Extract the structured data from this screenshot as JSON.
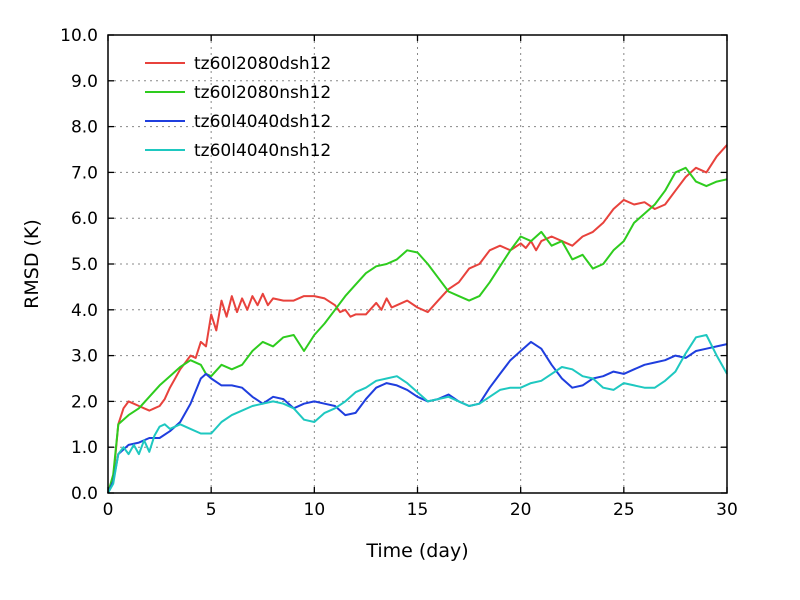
{
  "chart_data": {
    "type": "line",
    "xlabel": "Time (day)",
    "ylabel": "RMSD (K)",
    "xlim": [
      0,
      30
    ],
    "ylim": [
      0,
      10
    ],
    "xticks": [
      0,
      5,
      10,
      15,
      20,
      25,
      30
    ],
    "xtick_labels": [
      "0",
      "5",
      "10",
      "15",
      "20",
      "25",
      "30"
    ],
    "yticks": [
      0,
      1,
      2,
      3,
      4,
      5,
      6,
      7,
      8,
      9,
      10
    ],
    "ytick_labels": [
      "0.0",
      "1.0",
      "2.0",
      "3.0",
      "4.0",
      "5.0",
      "6.0",
      "7.0",
      "8.0",
      "9.0",
      "10.0"
    ],
    "grid": true,
    "legend_position": "top-left",
    "series": [
      {
        "name": "tz60l2080dsh12",
        "color": "#e8423c",
        "points": [
          [
            0,
            0
          ],
          [
            0.25,
            0.3
          ],
          [
            0.5,
            1.5
          ],
          [
            0.75,
            1.85
          ],
          [
            1,
            2.0
          ],
          [
            1.25,
            1.95
          ],
          [
            1.5,
            1.9
          ],
          [
            1.75,
            1.85
          ],
          [
            2,
            1.8
          ],
          [
            2.25,
            1.85
          ],
          [
            2.5,
            1.9
          ],
          [
            2.75,
            2.05
          ],
          [
            3,
            2.3
          ],
          [
            3.25,
            2.5
          ],
          [
            3.5,
            2.7
          ],
          [
            3.75,
            2.85
          ],
          [
            4,
            3.0
          ],
          [
            4.25,
            2.95
          ],
          [
            4.5,
            3.3
          ],
          [
            4.75,
            3.2
          ],
          [
            5,
            3.9
          ],
          [
            5.25,
            3.55
          ],
          [
            5.5,
            4.2
          ],
          [
            5.75,
            3.85
          ],
          [
            6,
            4.3
          ],
          [
            6.25,
            3.95
          ],
          [
            6.5,
            4.25
          ],
          [
            6.75,
            4.0
          ],
          [
            7,
            4.3
          ],
          [
            7.25,
            4.1
          ],
          [
            7.5,
            4.35
          ],
          [
            7.75,
            4.1
          ],
          [
            8,
            4.25
          ],
          [
            8.5,
            4.2
          ],
          [
            9,
            4.2
          ],
          [
            9.5,
            4.3
          ],
          [
            10,
            4.3
          ],
          [
            10.5,
            4.25
          ],
          [
            11,
            4.1
          ],
          [
            11.25,
            3.95
          ],
          [
            11.5,
            4.0
          ],
          [
            11.75,
            3.85
          ],
          [
            12,
            3.9
          ],
          [
            12.5,
            3.9
          ],
          [
            13,
            4.15
          ],
          [
            13.25,
            4.0
          ],
          [
            13.5,
            4.25
          ],
          [
            13.75,
            4.05
          ],
          [
            14,
            4.1
          ],
          [
            14.5,
            4.2
          ],
          [
            15,
            4.05
          ],
          [
            15.5,
            3.95
          ],
          [
            16,
            4.2
          ],
          [
            16.5,
            4.45
          ],
          [
            17,
            4.6
          ],
          [
            17.5,
            4.9
          ],
          [
            18,
            5.0
          ],
          [
            18.5,
            5.3
          ],
          [
            19,
            5.4
          ],
          [
            19.5,
            5.3
          ],
          [
            20,
            5.45
          ],
          [
            20.25,
            5.35
          ],
          [
            20.5,
            5.5
          ],
          [
            20.75,
            5.3
          ],
          [
            21,
            5.5
          ],
          [
            21.5,
            5.6
          ],
          [
            22,
            5.5
          ],
          [
            22.5,
            5.4
          ],
          [
            23,
            5.6
          ],
          [
            23.5,
            5.7
          ],
          [
            24,
            5.9
          ],
          [
            24.5,
            6.2
          ],
          [
            25,
            6.4
          ],
          [
            25.5,
            6.3
          ],
          [
            26,
            6.35
          ],
          [
            26.5,
            6.2
          ],
          [
            27,
            6.3
          ],
          [
            27.5,
            6.6
          ],
          [
            28,
            6.9
          ],
          [
            28.5,
            7.1
          ],
          [
            29,
            7.0
          ],
          [
            29.5,
            7.35
          ],
          [
            30,
            7.6
          ]
        ]
      },
      {
        "name": "tz60l2080nsh12",
        "color": "#2ecc1e",
        "points": [
          [
            0,
            0
          ],
          [
            0.25,
            0.4
          ],
          [
            0.5,
            1.5
          ],
          [
            1,
            1.7
          ],
          [
            1.5,
            1.85
          ],
          [
            2,
            2.1
          ],
          [
            2.5,
            2.35
          ],
          [
            3,
            2.55
          ],
          [
            3.5,
            2.75
          ],
          [
            4,
            2.9
          ],
          [
            4.5,
            2.8
          ],
          [
            4.75,
            2.6
          ],
          [
            5,
            2.55
          ],
          [
            5.5,
            2.8
          ],
          [
            6,
            2.7
          ],
          [
            6.5,
            2.8
          ],
          [
            7,
            3.1
          ],
          [
            7.5,
            3.3
          ],
          [
            8,
            3.2
          ],
          [
            8.5,
            3.4
          ],
          [
            9,
            3.45
          ],
          [
            9.5,
            3.1
          ],
          [
            10,
            3.45
          ],
          [
            10.5,
            3.7
          ],
          [
            11,
            4.0
          ],
          [
            11.5,
            4.3
          ],
          [
            12,
            4.55
          ],
          [
            12.5,
            4.8
          ],
          [
            13,
            4.95
          ],
          [
            13.5,
            5.0
          ],
          [
            14,
            5.1
          ],
          [
            14.5,
            5.3
          ],
          [
            15,
            5.25
          ],
          [
            15.5,
            5.0
          ],
          [
            16,
            4.7
          ],
          [
            16.5,
            4.4
          ],
          [
            17,
            4.3
          ],
          [
            17.5,
            4.2
          ],
          [
            18,
            4.3
          ],
          [
            18.5,
            4.6
          ],
          [
            19,
            4.95
          ],
          [
            19.5,
            5.3
          ],
          [
            20,
            5.6
          ],
          [
            20.5,
            5.5
          ],
          [
            21,
            5.7
          ],
          [
            21.5,
            5.4
          ],
          [
            22,
            5.5
          ],
          [
            22.5,
            5.1
          ],
          [
            23,
            5.2
          ],
          [
            23.5,
            4.9
          ],
          [
            24,
            5.0
          ],
          [
            24.5,
            5.3
          ],
          [
            25,
            5.5
          ],
          [
            25.5,
            5.9
          ],
          [
            26,
            6.1
          ],
          [
            26.5,
            6.3
          ],
          [
            27,
            6.6
          ],
          [
            27.5,
            7.0
          ],
          [
            28,
            7.1
          ],
          [
            28.5,
            6.8
          ],
          [
            29,
            6.7
          ],
          [
            29.5,
            6.8
          ],
          [
            30,
            6.85
          ]
        ]
      },
      {
        "name": "tz60l4040dsh12",
        "color": "#1f3ede",
        "points": [
          [
            0,
            0
          ],
          [
            0.25,
            0.25
          ],
          [
            0.5,
            0.85
          ],
          [
            1,
            1.05
          ],
          [
            1.5,
            1.1
          ],
          [
            2,
            1.2
          ],
          [
            2.5,
            1.2
          ],
          [
            3,
            1.35
          ],
          [
            3.5,
            1.55
          ],
          [
            4,
            1.95
          ],
          [
            4.5,
            2.5
          ],
          [
            4.75,
            2.6
          ],
          [
            5,
            2.5
          ],
          [
            5.5,
            2.35
          ],
          [
            6,
            2.35
          ],
          [
            6.5,
            2.3
          ],
          [
            7,
            2.1
          ],
          [
            7.5,
            1.95
          ],
          [
            8,
            2.1
          ],
          [
            8.5,
            2.05
          ],
          [
            9,
            1.85
          ],
          [
            9.5,
            1.95
          ],
          [
            10,
            2.0
          ],
          [
            10.5,
            1.95
          ],
          [
            11,
            1.9
          ],
          [
            11.5,
            1.7
          ],
          [
            12,
            1.75
          ],
          [
            12.5,
            2.05
          ],
          [
            13,
            2.3
          ],
          [
            13.5,
            2.4
          ],
          [
            14,
            2.35
          ],
          [
            14.5,
            2.25
          ],
          [
            15,
            2.1
          ],
          [
            15.5,
            2.0
          ],
          [
            16,
            2.05
          ],
          [
            16.5,
            2.15
          ],
          [
            17,
            2.0
          ],
          [
            17.5,
            1.9
          ],
          [
            18,
            1.95
          ],
          [
            18.5,
            2.3
          ],
          [
            19,
            2.6
          ],
          [
            19.5,
            2.9
          ],
          [
            20,
            3.1
          ],
          [
            20.5,
            3.3
          ],
          [
            21,
            3.15
          ],
          [
            21.5,
            2.8
          ],
          [
            22,
            2.5
          ],
          [
            22.5,
            2.3
          ],
          [
            23,
            2.35
          ],
          [
            23.5,
            2.5
          ],
          [
            24,
            2.55
          ],
          [
            24.5,
            2.65
          ],
          [
            25,
            2.6
          ],
          [
            25.5,
            2.7
          ],
          [
            26,
            2.8
          ],
          [
            26.5,
            2.85
          ],
          [
            27,
            2.9
          ],
          [
            27.5,
            3.0
          ],
          [
            28,
            2.95
          ],
          [
            28.5,
            3.1
          ],
          [
            29,
            3.15
          ],
          [
            29.5,
            3.2
          ],
          [
            30,
            3.25
          ]
        ]
      },
      {
        "name": "tz60l4040nsh12",
        "color": "#1ec8c0",
        "points": [
          [
            0,
            0
          ],
          [
            0.25,
            0.2
          ],
          [
            0.5,
            0.85
          ],
          [
            0.75,
            1.0
          ],
          [
            1,
            0.85
          ],
          [
            1.25,
            1.05
          ],
          [
            1.5,
            0.85
          ],
          [
            1.75,
            1.15
          ],
          [
            2,
            0.9
          ],
          [
            2.25,
            1.25
          ],
          [
            2.5,
            1.45
          ],
          [
            2.75,
            1.5
          ],
          [
            3,
            1.4
          ],
          [
            3.5,
            1.5
          ],
          [
            4,
            1.4
          ],
          [
            4.5,
            1.3
          ],
          [
            5,
            1.3
          ],
          [
            5.5,
            1.55
          ],
          [
            6,
            1.7
          ],
          [
            6.5,
            1.8
          ],
          [
            7,
            1.9
          ],
          [
            7.5,
            1.95
          ],
          [
            8,
            2.0
          ],
          [
            8.5,
            1.95
          ],
          [
            9,
            1.85
          ],
          [
            9.5,
            1.6
          ],
          [
            10,
            1.55
          ],
          [
            10.5,
            1.75
          ],
          [
            11,
            1.85
          ],
          [
            11.5,
            2.0
          ],
          [
            12,
            2.2
          ],
          [
            12.5,
            2.3
          ],
          [
            13,
            2.45
          ],
          [
            13.5,
            2.5
          ],
          [
            14,
            2.55
          ],
          [
            14.5,
            2.4
          ],
          [
            15,
            2.2
          ],
          [
            15.5,
            2.0
          ],
          [
            16,
            2.05
          ],
          [
            16.5,
            2.1
          ],
          [
            17,
            2.0
          ],
          [
            17.5,
            1.9
          ],
          [
            18,
            1.95
          ],
          [
            18.5,
            2.1
          ],
          [
            19,
            2.25
          ],
          [
            19.5,
            2.3
          ],
          [
            20,
            2.3
          ],
          [
            20.5,
            2.4
          ],
          [
            21,
            2.45
          ],
          [
            21.5,
            2.6
          ],
          [
            22,
            2.75
          ],
          [
            22.5,
            2.7
          ],
          [
            23,
            2.55
          ],
          [
            23.5,
            2.5
          ],
          [
            24,
            2.3
          ],
          [
            24.5,
            2.25
          ],
          [
            25,
            2.4
          ],
          [
            25.5,
            2.35
          ],
          [
            26,
            2.3
          ],
          [
            26.5,
            2.3
          ],
          [
            27,
            2.45
          ],
          [
            27.5,
            2.65
          ],
          [
            28,
            3.05
          ],
          [
            28.5,
            3.4
          ],
          [
            29,
            3.45
          ],
          [
            29.5,
            3.0
          ],
          [
            30,
            2.6
          ]
        ]
      }
    ]
  }
}
